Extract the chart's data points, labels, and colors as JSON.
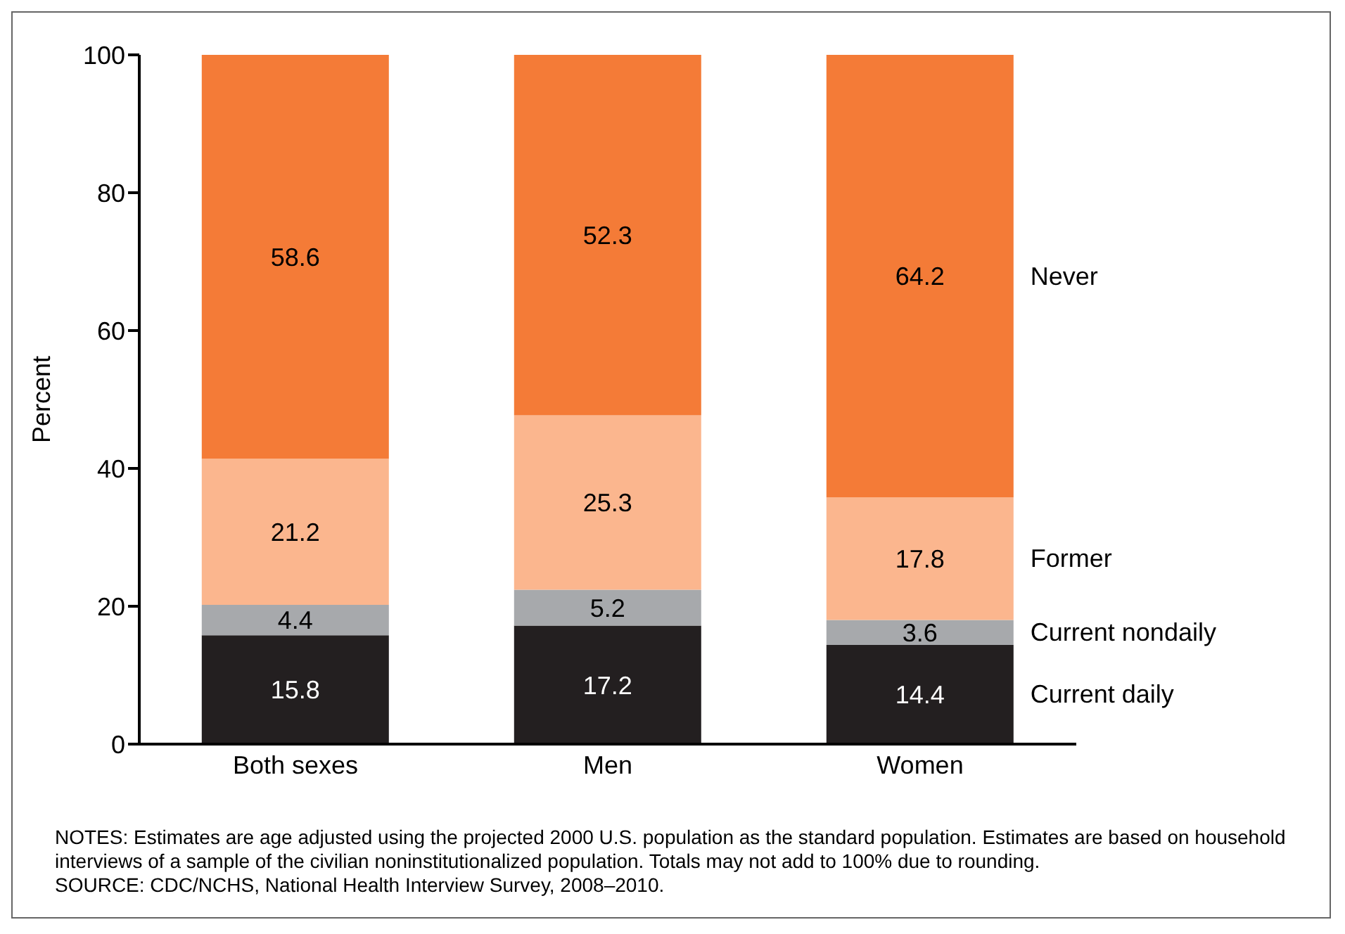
{
  "chart_data": {
    "type": "bar",
    "stacked": true,
    "categories": [
      "Both sexes",
      "Men",
      "Women"
    ],
    "ylabel": "Percent",
    "ylim": [
      0,
      100
    ],
    "yticks": [
      0,
      20,
      40,
      60,
      80,
      100
    ],
    "grid": false,
    "legend": false,
    "data_labels": true,
    "series": [
      {
        "name": "Current daily",
        "color": "#231f20",
        "values": [
          15.8,
          17.2,
          14.4
        ]
      },
      {
        "name": "Current nondaily",
        "color": "#a7a9ac",
        "values": [
          4.4,
          5.2,
          3.6
        ]
      },
      {
        "name": "Former",
        "color": "#fbb68e",
        "values": [
          21.2,
          25.3,
          17.8
        ]
      },
      {
        "name": "Never",
        "color": "#f47b37",
        "values": [
          58.6,
          52.3,
          64.2
        ]
      }
    ],
    "annotations": [
      "NOTES: Estimates are age adjusted using the projected 2000 U.S. population as the standard population. Estimates are based on household interviews of a sample of the civilian noninstitutionalized population. Totals may not add to 100% due to rounding.",
      "SOURCE: CDC/NCHS, National Health Interview Survey, 2008–2010."
    ]
  }
}
